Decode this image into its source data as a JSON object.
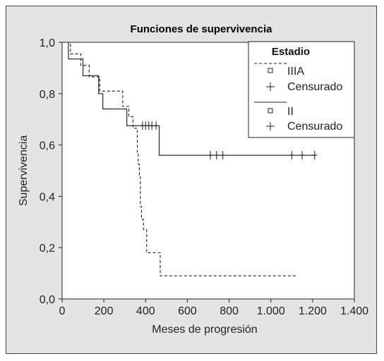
{
  "chart_data": {
    "type": "line",
    "title": "Funciones de supervivencia",
    "xlabel": "Meses de progresión",
    "ylabel": "Supervivencia",
    "xlim": [
      0,
      1400
    ],
    "ylim": [
      0,
      1.0
    ],
    "x_ticks": [
      0,
      200,
      400,
      600,
      800,
      1000,
      1200,
      1400
    ],
    "x_tick_labels": [
      "0",
      "200",
      "400",
      "600",
      "800",
      "1.000",
      "1.200",
      "1.400"
    ],
    "y_ticks": [
      0,
      0.2,
      0.4,
      0.6,
      0.8,
      1.0
    ],
    "y_tick_labels": [
      "0,0",
      "0,2",
      "0,4",
      "0,6",
      "0,8",
      "1,0"
    ],
    "grid": false,
    "legend": {
      "title": "Estadio",
      "placement": "top-right",
      "groups": [
        {
          "name": "IIIA",
          "censored_label": "Censurado"
        },
        {
          "name": "II",
          "censored_label": "Censurado"
        }
      ]
    },
    "series": [
      {
        "name": "IIIA",
        "style": "dashed",
        "x": [
          0,
          30,
          40,
          70,
          90,
          100,
          130,
          150,
          180,
          200,
          270,
          290,
          300,
          320,
          330,
          340,
          350,
          360,
          365,
          370,
          375,
          380,
          390,
          405,
          450,
          470,
          1120
        ],
        "y": [
          1.0,
          1.0,
          0.955,
          0.955,
          0.91,
          0.91,
          0.865,
          0.865,
          0.81,
          0.81,
          0.81,
          0.75,
          0.75,
          0.71,
          0.71,
          0.665,
          0.665,
          0.57,
          0.525,
          0.48,
          0.36,
          0.31,
          0.27,
          0.18,
          0.18,
          0.09,
          0.09
        ],
        "censored_x": [],
        "censored_y": []
      },
      {
        "name": "II",
        "style": "solid",
        "x": [
          0,
          30,
          30,
          100,
          100,
          175,
          175,
          195,
          195,
          310,
          310,
          465,
          465,
          1220
        ],
        "y": [
          1.0,
          1.0,
          0.935,
          0.935,
          0.87,
          0.87,
          0.8,
          0.8,
          0.74,
          0.74,
          0.675,
          0.675,
          0.56,
          0.56
        ],
        "censored_x": [
          385,
          400,
          415,
          430,
          450,
          710,
          740,
          770,
          1100,
          1150,
          1210
        ],
        "censored_y": [
          0.675,
          0.675,
          0.675,
          0.675,
          0.675,
          0.56,
          0.56,
          0.56,
          0.56,
          0.56,
          0.56
        ]
      }
    ]
  }
}
